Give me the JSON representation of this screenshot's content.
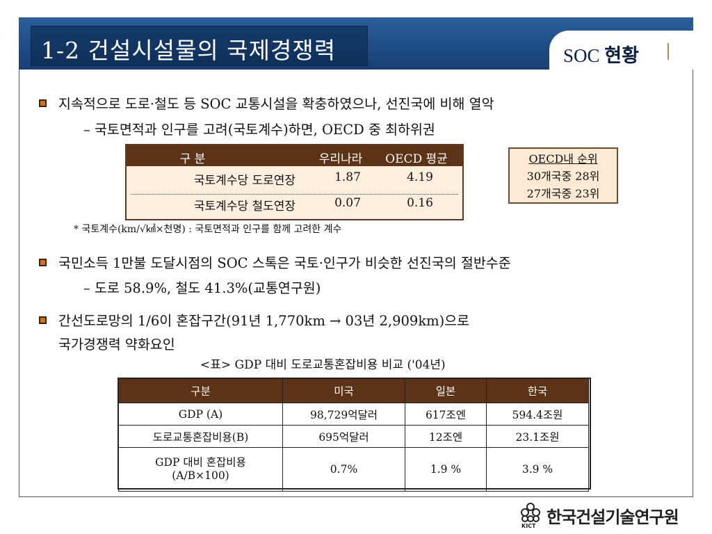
{
  "header": {
    "title": "1-2 건설시설물의 국제경쟁력",
    "section_prefix": "SOC ",
    "section_bold": "현황"
  },
  "bullets": [
    {
      "text": "지속적으로 도로·철도 등 SOC 교통시설을 확충하였으나, 선진국에 비해 열악",
      "sub": "–  국토면적과 인구를 고려(국토계수)하면,  OECD 중 최하위권"
    },
    {
      "text": "국민소득 1만불 도달시점의 SOC 스톡은 국토·인구가 비슷한 선진국의 절반수준",
      "sub": "–  도로 58.9%, 철도 41.3%(교통연구원)"
    },
    {
      "text": "간선도로망의 1/6이 혼잡구간(91년 1,770km → 03년 2,909km)으로",
      "text2": "국가경쟁력 약화요인"
    }
  ],
  "mini_table": {
    "headers": [
      "구  분",
      "우리나라",
      "OECD 평균"
    ],
    "rows": [
      [
        "국토계수당 도로연장",
        "1.87",
        "4.19"
      ],
      [
        "국토계수당 철도연장",
        "0.07",
        "0.16"
      ]
    ],
    "footnote": "* 국토계수(km/√㎢×천명) : 국토면적과 인구를 함께 고려한 계수"
  },
  "rank_box": {
    "title": "OECD내 순위",
    "line1": "30개국중 28위",
    "line2": "27개국중 23위"
  },
  "big_table": {
    "caption": "<표> GDP 대비 도로교통혼잡비용 비교 ('04년)",
    "headers": [
      "구분",
      "미국",
      "일본",
      "한국"
    ],
    "rows": [
      [
        "GDP (A)",
        "98,729억달러",
        "617조엔",
        "594.4조원"
      ],
      [
        "도로교통혼잡비용(B)",
        "695억달러",
        "12조엔",
        "23.1조원"
      ]
    ],
    "last_row": {
      "label_line1": "GDP 대비 혼잡비용",
      "label_line2": "(A/B×100)",
      "values": [
        "0.7%",
        "1.9 %",
        "3.9 %"
      ]
    }
  },
  "logo": {
    "name": "한국건설기술연구원",
    "abbr": "KICT"
  }
}
